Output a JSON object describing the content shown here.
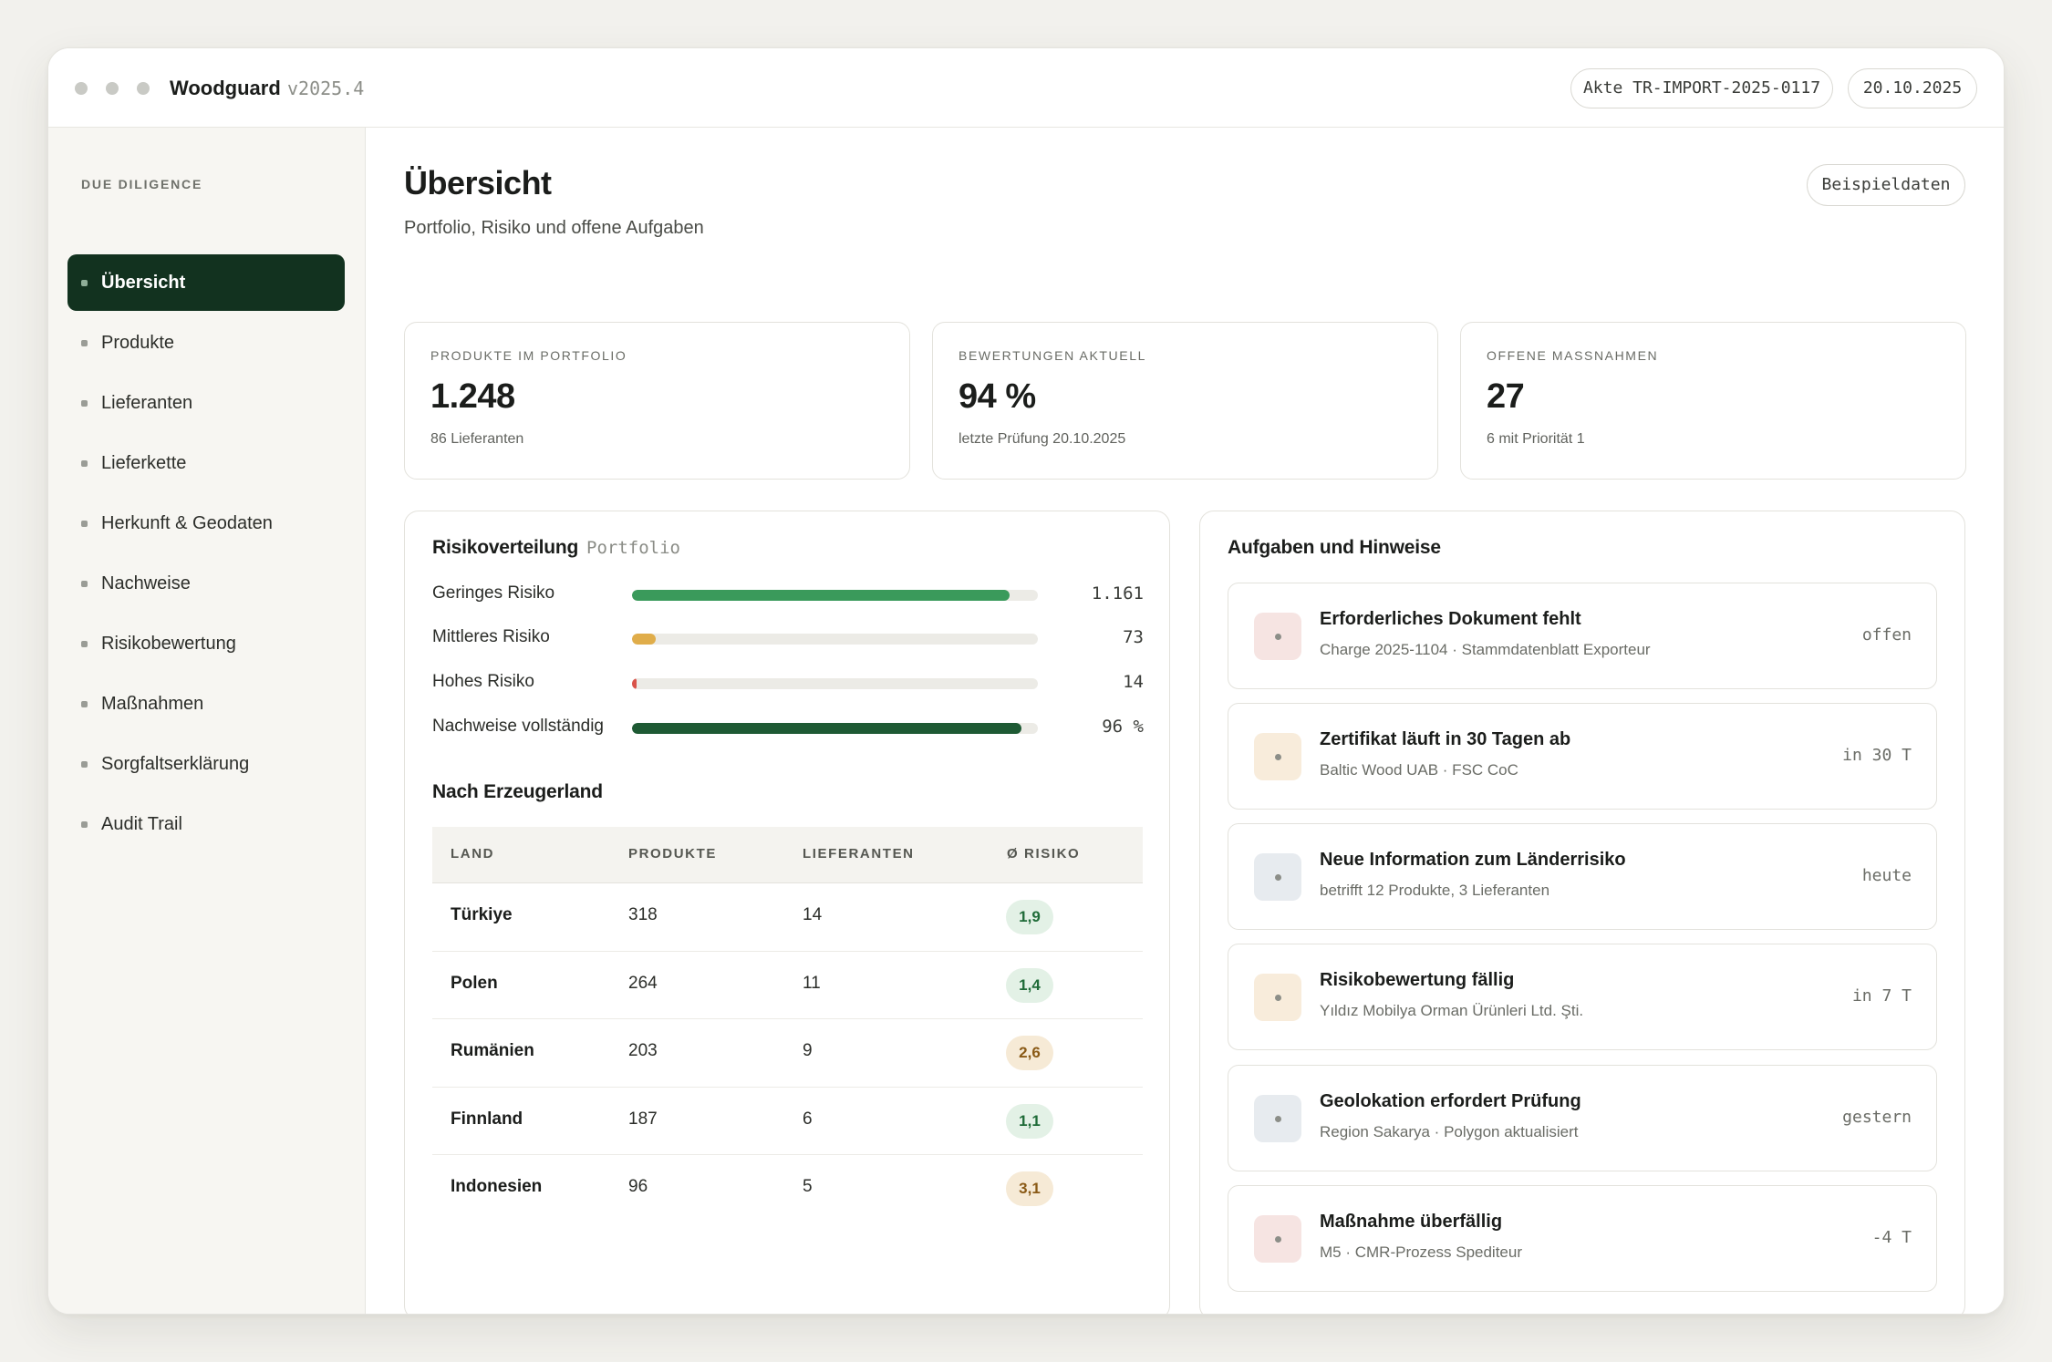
{
  "window": {
    "app_name": "Woodguard",
    "version": "v2025.4",
    "case_label": "Akte TR-IMPORT-2025-0117",
    "date": "20.10.2025"
  },
  "sidebar": {
    "section_label": "DUE DILIGENCE",
    "items": [
      {
        "label": "Übersicht",
        "active": true
      },
      {
        "label": "Produkte"
      },
      {
        "label": "Lieferanten"
      },
      {
        "label": "Lieferkette"
      },
      {
        "label": "Herkunft & Geodaten"
      },
      {
        "label": "Nachweise"
      },
      {
        "label": "Risikobewertung"
      },
      {
        "label": "Maßnahmen"
      },
      {
        "label": "Sorgfaltserklärung"
      },
      {
        "label": "Audit Trail"
      }
    ]
  },
  "header": {
    "title": "Übersicht",
    "subtitle": "Portfolio, Risiko und offene Aufgaben",
    "sample_button": "Beispieldaten"
  },
  "kpis": [
    {
      "label": "PRODUKTE IM PORTFOLIO",
      "value": "1.248",
      "note": "86 Lieferanten"
    },
    {
      "label": "BEWERTUNGEN AKTUELL",
      "value": "94 %",
      "note": "letzte Prüfung 20.10.2025"
    },
    {
      "label": "OFFENE MASSNAHMEN",
      "value": "27",
      "note": "6 mit Priorität 1"
    }
  ],
  "risk": {
    "title": "Risikoverteilung",
    "tag": "Portfolio",
    "rows": [
      {
        "label": "Geringes Risiko",
        "count": "1.161",
        "fill_fraction": 0.93,
        "color": "#3a9a5b"
      },
      {
        "label": "Mittleres Risiko",
        "count": "73",
        "fill_fraction": 0.058,
        "color": "#e0ad4a"
      },
      {
        "label": "Hohes Risiko",
        "count": "14",
        "fill_fraction": 0.011,
        "color": "#d9534a"
      },
      {
        "label": "Nachweise vollständig",
        "count": "96 %",
        "fill_fraction": 0.96,
        "color": "#1e5a34"
      }
    ]
  },
  "countries": {
    "title": "Nach Erzeugerland",
    "columns": [
      "LAND",
      "PRODUKTE",
      "LIEFERANTEN",
      "Ø RISIKO"
    ],
    "rows": [
      {
        "country": "Türkiye",
        "products": "318",
        "suppliers": "14",
        "risk": "1,9",
        "level": "low"
      },
      {
        "country": "Polen",
        "products": "264",
        "suppliers": "11",
        "risk": "1,4",
        "level": "low"
      },
      {
        "country": "Rumänien",
        "products": "203",
        "suppliers": "9",
        "risk": "2,6",
        "level": "mid"
      },
      {
        "country": "Finnland",
        "products": "187",
        "suppliers": "6",
        "risk": "1,1",
        "level": "low"
      },
      {
        "country": "Indonesien",
        "products": "96",
        "suppliers": "5",
        "risk": "3,1",
        "level": "mid"
      }
    ]
  },
  "tasks": {
    "title": "Aufgaben und Hinweise",
    "items": [
      {
        "title": "Erforderliches Dokument fehlt",
        "sub": "Charge 2025-1104 · Stammdatenblatt Exporteur",
        "status": "offen",
        "tone": "red"
      },
      {
        "title": "Zertifikat läuft in 30 Tagen ab",
        "sub": "Baltic Wood UAB · FSC CoC",
        "status": "in 30 T",
        "tone": "amber"
      },
      {
        "title": "Neue Information zum Länderrisiko",
        "sub": "betrifft 12 Produkte, 3 Lieferanten",
        "status": "heute",
        "tone": "blue"
      },
      {
        "title": "Risikobewertung fällig",
        "sub": "Yıldız Mobilya Orman Ürünleri Ltd. Şti.",
        "status": "in 7 T",
        "tone": "amber"
      },
      {
        "title": "Geolokation erfordert Prüfung",
        "sub": "Region Sakarya · Polygon aktualisiert",
        "status": "gestern",
        "tone": "blue"
      },
      {
        "title": "Maßnahme überfällig",
        "sub": "M5 · CMR-Prozess Spediteur",
        "status": "-4 T",
        "tone": "red"
      }
    ]
  }
}
